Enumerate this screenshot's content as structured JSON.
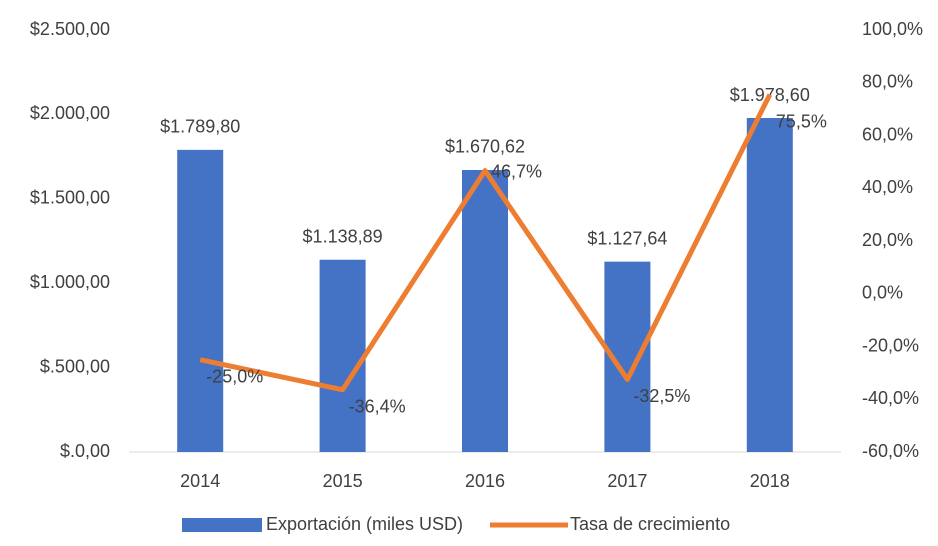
{
  "chart_data": {
    "type": "bar",
    "categories": [
      "2014",
      "2015",
      "2016",
      "2017",
      "2018"
    ],
    "series": [
      {
        "name": "Exportación (miles USD)",
        "type": "bar",
        "color": "#4472c4",
        "values": [
          1789.8,
          1138.89,
          1670.62,
          1127.64,
          1978.6
        ],
        "value_labels": [
          "$1.789,80",
          "$1.138,89",
          "$1.670,62",
          "$1.127,64",
          "$1.978,60"
        ]
      },
      {
        "name": "Tasa de crecimiento",
        "type": "line",
        "axis": "y2",
        "color": "#ed7d31",
        "values": [
          -25.0,
          -36.4,
          46.7,
          -32.5,
          75.5
        ],
        "value_labels": [
          "-25,0%",
          "-36,4%",
          "46,7%",
          "-32,5%",
          "75,5%"
        ]
      }
    ],
    "ylim": [
      0,
      2500
    ],
    "yticks": [
      {
        "value": 0,
        "label": "$.0,00"
      },
      {
        "value": 500,
        "label": "$.500,00"
      },
      {
        "value": 1000,
        "label": "$1.000,00"
      },
      {
        "value": 1500,
        "label": "$1.500,00"
      },
      {
        "value": 2000,
        "label": "$2.000,00"
      },
      {
        "value": 2500,
        "label": "$2.500,00"
      }
    ],
    "y2lim": [
      -60,
      100
    ],
    "y2ticks": [
      {
        "value": -60,
        "label": "-60,0%"
      },
      {
        "value": -40,
        "label": "-40,0%"
      },
      {
        "value": -20,
        "label": "-20,0%"
      },
      {
        "value": 0,
        "label": "0,0%"
      },
      {
        "value": 20,
        "label": "20,0%"
      },
      {
        "value": 40,
        "label": "40,0%"
      },
      {
        "value": 60,
        "label": "60,0%"
      },
      {
        "value": 80,
        "label": "80,0%"
      },
      {
        "value": 100,
        "label": "100,0%"
      }
    ],
    "legend": "bottom"
  }
}
